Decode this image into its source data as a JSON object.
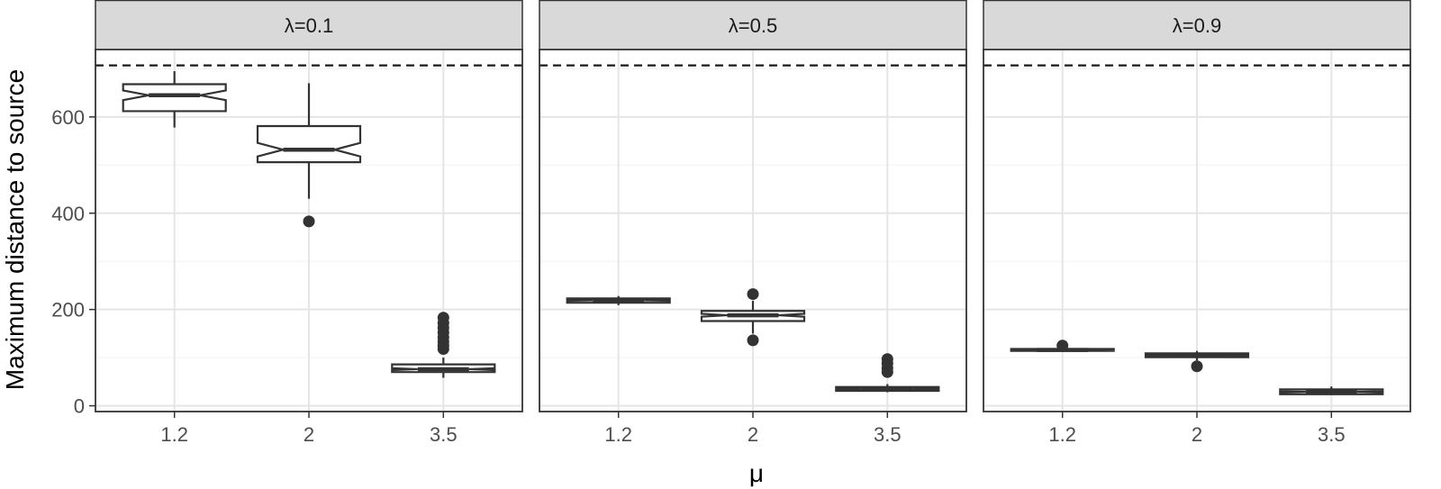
{
  "chart_data": {
    "type": "boxplot",
    "xlabel": "μ",
    "ylabel": "Maximum distance to source",
    "ylim": [
      -12,
      740
    ],
    "y_ticks": [
      0,
      200,
      400,
      600
    ],
    "x_categories": [
      "1.2",
      "2",
      "3.5"
    ],
    "notched": true,
    "reference_line": {
      "y": 707,
      "style": "dashed"
    },
    "grid": true,
    "facets": [
      {
        "label": "λ=0.1",
        "boxes": [
          {
            "x": "1.2",
            "whisker_low": 578,
            "q1": 612,
            "median": 645,
            "q3": 668,
            "whisker_high": 695,
            "notch": 10,
            "outliers": []
          },
          {
            "x": "2",
            "whisker_low": 430,
            "q1": 506,
            "median": 532,
            "q3": 581,
            "whisker_high": 670,
            "notch": 14,
            "outliers": [
              383
            ]
          },
          {
            "x": "3.5",
            "whisker_low": 58,
            "q1": 70,
            "median": 76,
            "q3": 86,
            "whisker_high": 100,
            "notch": 2,
            "outliers": [
              118,
              125,
              133,
              142,
              152,
              162,
              172,
              183
            ]
          }
        ]
      },
      {
        "label": "λ=0.5",
        "boxes": [
          {
            "x": "1.2",
            "whisker_low": 209,
            "q1": 214,
            "median": 219,
            "q3": 223,
            "whisker_high": 228,
            "notch": 1,
            "outliers": []
          },
          {
            "x": "2",
            "whisker_low": 150,
            "q1": 176,
            "median": 188,
            "q3": 197,
            "whisker_high": 218,
            "notch": 3,
            "outliers": [
              136,
              232
            ]
          },
          {
            "x": "3.5",
            "whisker_low": 28,
            "q1": 31,
            "median": 35,
            "q3": 39,
            "whisker_high": 45,
            "notch": 1,
            "outliers": [
              70,
              78,
              88,
              97
            ]
          }
        ]
      },
      {
        "label": "λ=0.9",
        "boxes": [
          {
            "x": "1.2",
            "whisker_low": 112,
            "q1": 114,
            "median": 116,
            "q3": 118,
            "whisker_high": 121,
            "notch": 0.5,
            "outliers": [
              125
            ]
          },
          {
            "x": "2",
            "whisker_low": 94,
            "q1": 101,
            "median": 105,
            "q3": 109,
            "whisker_high": 114,
            "notch": 1,
            "outliers": [
              82
            ]
          },
          {
            "x": "3.5",
            "whisker_low": 22,
            "q1": 24,
            "median": 29,
            "q3": 34,
            "whisker_high": 40,
            "notch": 1,
            "outliers": []
          }
        ]
      }
    ]
  }
}
